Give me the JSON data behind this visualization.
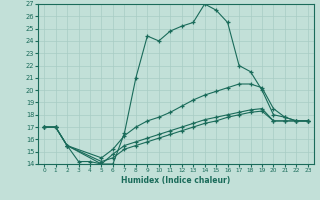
{
  "xlabel": "Humidex (Indice chaleur)",
  "ylabel": "",
  "bg_color": "#c2e0d8",
  "grid_color": "#a8ccc4",
  "line_color": "#1a6b5a",
  "xlim": [
    -0.5,
    23.5
  ],
  "ylim": [
    14,
    27
  ],
  "yticks": [
    14,
    15,
    16,
    17,
    18,
    19,
    20,
    21,
    22,
    23,
    24,
    25,
    26,
    27
  ],
  "xticks": [
    0,
    1,
    2,
    3,
    4,
    5,
    6,
    7,
    8,
    9,
    10,
    11,
    12,
    13,
    14,
    15,
    16,
    17,
    18,
    19,
    20,
    21,
    22,
    23
  ],
  "line1_x": [
    0,
    1,
    2,
    3,
    4,
    5,
    6,
    7,
    8,
    9,
    10,
    11,
    12,
    13,
    14,
    15,
    16,
    17,
    18,
    19,
    20,
    21,
    22,
    23
  ],
  "line1_y": [
    17,
    17,
    15.5,
    14.2,
    14.2,
    14.0,
    14.0,
    16.5,
    21.0,
    24.4,
    24.0,
    24.8,
    25.2,
    25.5,
    27.0,
    26.5,
    25.5,
    22.0,
    21.5,
    20.0,
    18.0,
    17.8,
    17.5,
    17.5
  ],
  "line2_x": [
    0,
    1,
    2,
    5,
    6,
    7,
    8,
    9,
    10,
    11,
    12,
    13,
    14,
    15,
    16,
    17,
    18,
    19,
    20,
    21,
    22,
    23
  ],
  "line2_y": [
    17,
    17,
    15.5,
    14.5,
    15.2,
    16.3,
    17.0,
    17.5,
    17.8,
    18.2,
    18.7,
    19.2,
    19.6,
    19.9,
    20.2,
    20.5,
    20.5,
    20.2,
    18.5,
    17.8,
    17.5,
    17.5
  ],
  "line3_x": [
    0,
    1,
    2,
    5,
    6,
    7,
    8,
    9,
    10,
    11,
    12,
    13,
    14,
    15,
    16,
    17,
    18,
    19,
    20,
    21,
    22,
    23
  ],
  "line3_y": [
    17,
    17,
    15.5,
    14.0,
    14.8,
    15.5,
    15.8,
    16.1,
    16.4,
    16.7,
    17.0,
    17.3,
    17.6,
    17.8,
    18.0,
    18.2,
    18.4,
    18.5,
    17.5,
    17.5,
    17.5,
    17.5
  ],
  "line4_x": [
    0,
    1,
    2,
    5,
    6,
    7,
    8,
    9,
    10,
    11,
    12,
    13,
    14,
    15,
    16,
    17,
    18,
    19,
    20,
    21,
    22,
    23
  ],
  "line4_y": [
    17,
    17,
    15.5,
    14.2,
    14.5,
    15.2,
    15.5,
    15.8,
    16.1,
    16.4,
    16.7,
    17.0,
    17.3,
    17.5,
    17.8,
    18.0,
    18.2,
    18.3,
    17.5,
    17.5,
    17.5,
    17.5
  ]
}
